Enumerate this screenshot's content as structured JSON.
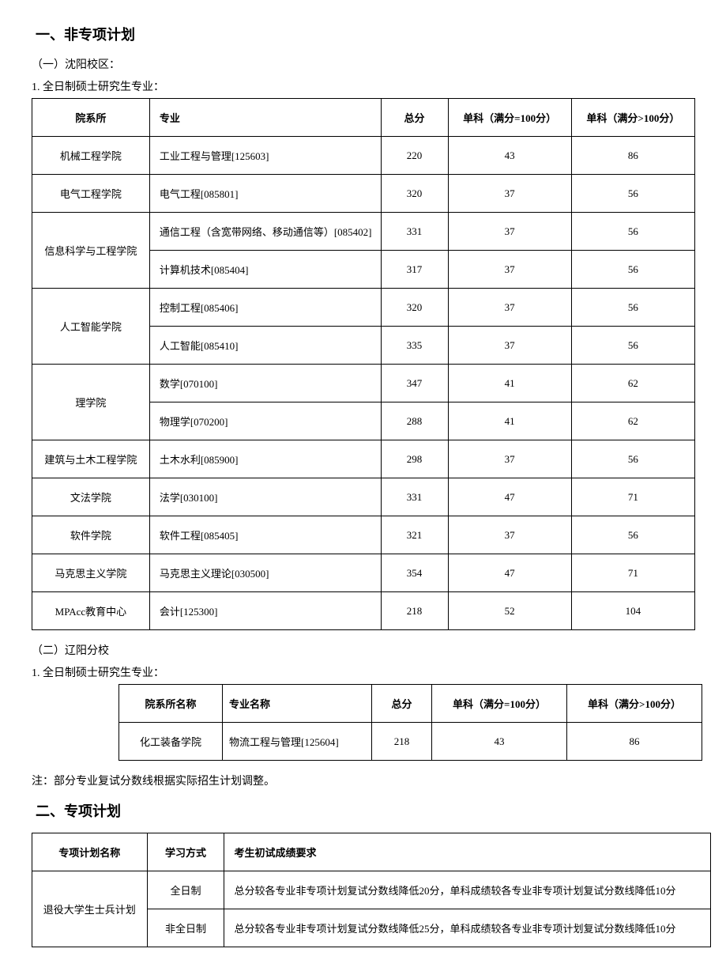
{
  "section1": {
    "title": "一、非专项计划",
    "campus1": {
      "heading": "（一）沈阳校区：",
      "sub": "1. 全日制硕士研究生专业：",
      "columns": [
        "院系所",
        "专业",
        "总分",
        "单科（满分=100分）",
        "单科（满分>100分）"
      ],
      "rows": [
        {
          "dept": "机械工程学院",
          "major": "工业工程与管理[125603]",
          "total": "220",
          "s1": "43",
          "s2": "86",
          "rowspan": 1
        },
        {
          "dept": "电气工程学院",
          "major": "电气工程[085801]",
          "total": "320",
          "s1": "37",
          "s2": "56",
          "rowspan": 1
        },
        {
          "dept": "信息科学与工程学院",
          "major": "通信工程（含宽带网络、移动通信等）[085402]",
          "total": "331",
          "s1": "37",
          "s2": "56",
          "rowspan": 2
        },
        {
          "dept": "",
          "major": "计算机技术[085404]",
          "total": "317",
          "s1": "37",
          "s2": "56",
          "rowspan": 0
        },
        {
          "dept": "人工智能学院",
          "major": "控制工程[085406]",
          "total": "320",
          "s1": "37",
          "s2": "56",
          "rowspan": 2
        },
        {
          "dept": "",
          "major": "人工智能[085410]",
          "total": "335",
          "s1": "37",
          "s2": "56",
          "rowspan": 0
        },
        {
          "dept": "理学院",
          "major": "数学[070100]",
          "total": "347",
          "s1": "41",
          "s2": "62",
          "rowspan": 2
        },
        {
          "dept": "",
          "major": "物理学[070200]",
          "total": "288",
          "s1": "41",
          "s2": "62",
          "rowspan": 0
        },
        {
          "dept": "建筑与土木工程学院",
          "major": "土木水利[085900]",
          "total": "298",
          "s1": "37",
          "s2": "56",
          "rowspan": 1
        },
        {
          "dept": "文法学院",
          "major": "法学[030100]",
          "total": "331",
          "s1": "47",
          "s2": "71",
          "rowspan": 1
        },
        {
          "dept": "软件学院",
          "major": "软件工程[085405]",
          "total": "321",
          "s1": "37",
          "s2": "56",
          "rowspan": 1
        },
        {
          "dept": "马克思主义学院",
          "major": "马克思主义理论[030500]",
          "total": "354",
          "s1": "47",
          "s2": "71",
          "rowspan": 1
        },
        {
          "dept": "MPAcc教育中心",
          "major": "会计[125300]",
          "total": "218",
          "s1": "52",
          "s2": "104",
          "rowspan": 1
        }
      ]
    },
    "campus2": {
      "heading": "（二）辽阳分校",
      "sub": "1. 全日制硕士研究生专业：",
      "columns": [
        "院系所名称",
        "专业名称",
        "总分",
        "单科（满分=100分）",
        "单科（满分>100分）"
      ],
      "rows": [
        {
          "dept": "化工装备学院",
          "major": "物流工程与管理[125604]",
          "total": "218",
          "s1": "43",
          "s2": "86"
        }
      ]
    },
    "note": "注：部分专业复试分数线根据实际招生计划调整。"
  },
  "section2": {
    "title": "二、专项计划",
    "columns": [
      "专项计划名称",
      "学习方式",
      "考生初试成绩要求"
    ],
    "rows": [
      {
        "plan": "退役大学生士兵计划",
        "mode": "全日制",
        "req": "总分较各专业非专项计划复试分数线降低20分，单科成绩较各专业非专项计划复试分数线降低10分",
        "rowspan": 2
      },
      {
        "plan": "",
        "mode": "非全日制",
        "req": "总分较各专业非专项计划复试分数线降低25分，单科成绩较各专业非专项计划复试分数线降低10分",
        "rowspan": 0
      }
    ]
  }
}
